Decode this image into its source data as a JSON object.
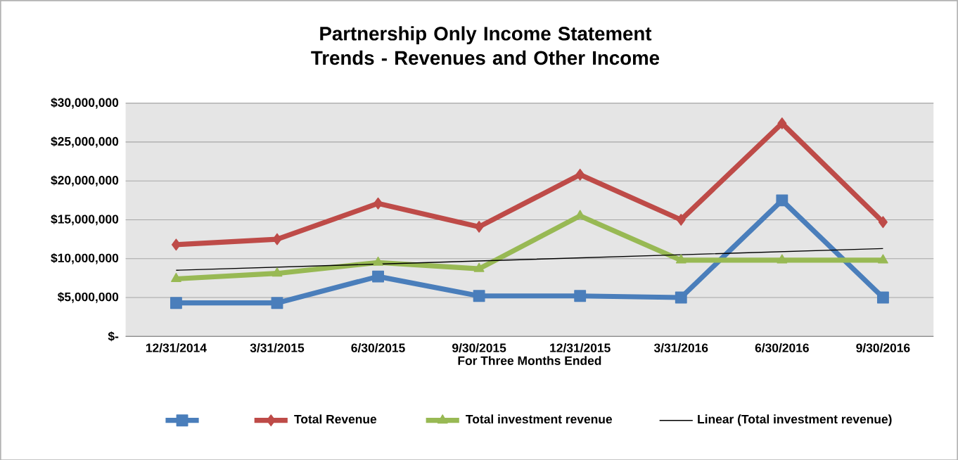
{
  "chart_data": {
    "type": "line",
    "title": "Partnership Only Income Statement Trends - Revenues and Other Income",
    "xlabel": "For Three Months Ended",
    "categories": [
      "12/31/2014",
      "3/31/2015",
      "6/30/2015",
      "9/30/2015",
      "12/31/2015",
      "3/31/2016",
      "6/30/2016",
      "9/30/2016"
    ],
    "series": [
      {
        "color": "#4a7ebb",
        "marker": "square",
        "values": [
          4300000,
          4300000,
          7700000,
          5200000,
          5200000,
          5000000,
          17500000,
          5000000
        ]
      },
      {
        "name": "Total Revenue",
        "color": "#be4b48",
        "marker": "diamond",
        "values": [
          11800000,
          12500000,
          17100000,
          14100000,
          20800000,
          15000000,
          27400000,
          14700000
        ]
      },
      {
        "name": "Total investment revenue",
        "color": "#98b954",
        "marker": "triangle",
        "values": [
          7400000,
          8100000,
          9500000,
          8700000,
          15500000,
          9800000,
          9800000,
          9800000
        ]
      },
      {
        "name": "Linear (Total investment revenue)",
        "color": "#000000",
        "marker": "none",
        "values": [
          8500000,
          8900000,
          9300000,
          9700000,
          10100000,
          10500000,
          10900000,
          11300000
        ]
      }
    ],
    "ylim": [
      0,
      30000000
    ],
    "yticks": [
      {
        "value": 0,
        "label": "$-"
      },
      {
        "value": 5000000,
        "label": "$5,000,000"
      },
      {
        "value": 10000000,
        "label": "$10,000,000"
      },
      {
        "value": 15000000,
        "label": "$15,000,000"
      },
      {
        "value": 20000000,
        "label": "$20,000,000"
      },
      {
        "value": 25000000,
        "label": "$25,000,000"
      },
      {
        "value": 30000000,
        "label": "$30,000,000"
      }
    ],
    "grid": "y",
    "legend": "bottom"
  }
}
